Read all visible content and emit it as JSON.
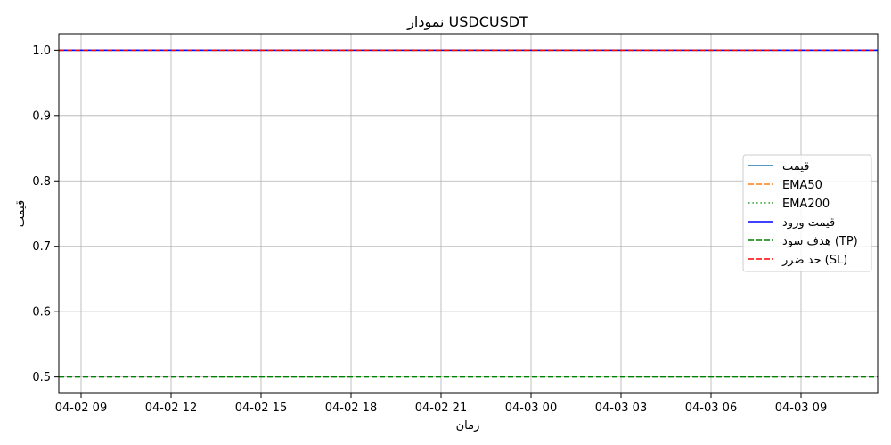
{
  "chart_data": {
    "type": "line",
    "title": "نمودار USDCUSDT",
    "xlabel": "زمان",
    "ylabel": "قیمت",
    "x_ticks": [
      "04-02 09",
      "04-02 12",
      "04-02 15",
      "04-02 18",
      "04-02 21",
      "04-03 00",
      "04-03 03",
      "04-03 06",
      "04-03 09"
    ],
    "y_ticks": [
      0.5,
      0.6,
      0.7,
      0.8,
      0.9,
      1.0
    ],
    "ylim": [
      0.475,
      1.025
    ],
    "grid": true,
    "legend_position": "center-right",
    "series": [
      {
        "name": "قیمت",
        "color": "#1f77b4",
        "style": "solid",
        "values": [
          1.0,
          1.0
        ]
      },
      {
        "name": "EMA50",
        "color": "#ff7f0e",
        "style": "dashed",
        "values": [
          1.0,
          1.0
        ]
      },
      {
        "name": "EMA200",
        "color": "#2ca02c",
        "style": "dotted",
        "values": [
          1.0,
          1.0
        ]
      },
      {
        "name": "قیمت ورود",
        "color": "#0000ff",
        "style": "solid",
        "values": [
          1.0,
          1.0
        ]
      },
      {
        "name": "هدف سود (TP)",
        "color": "#008000",
        "style": "dashed",
        "values": [
          0.5,
          0.5
        ]
      },
      {
        "name": "حد ضرر (SL)",
        "color": "#ff0000",
        "style": "dashed",
        "values": [
          1.0,
          1.0
        ]
      }
    ]
  }
}
